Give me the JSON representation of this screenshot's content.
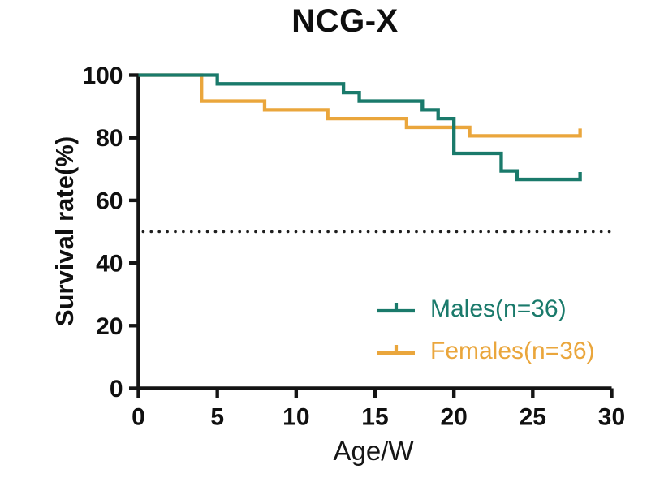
{
  "title": "NCG-X",
  "chart_data": {
    "type": "line",
    "subtype": "kaplan-meier-step-survival",
    "title": "NCG-X",
    "xlabel": "Age/W",
    "ylabel": "Survival rate(%)",
    "xlim": [
      0,
      30
    ],
    "ylim": [
      0,
      100
    ],
    "xticks": [
      0,
      5,
      10,
      15,
      20,
      25,
      30
    ],
    "yticks": [
      0,
      20,
      40,
      60,
      80,
      100
    ],
    "grid": false,
    "legend_position": "lower right",
    "reference_line": {
      "y": 50,
      "style": "dotted",
      "color": "#1f1f1f"
    },
    "axis_color": "#141414",
    "series": [
      {
        "name": "Males(n=36)",
        "slug": "males",
        "color": "#1a7a6b",
        "start_value": 100,
        "steps": [
          [
            5,
            97.2
          ],
          [
            13,
            94.4
          ],
          [
            14,
            91.7
          ],
          [
            18,
            88.9
          ],
          [
            19,
            86.1
          ],
          [
            20,
            75.0
          ],
          [
            23,
            69.4
          ],
          [
            24,
            66.7
          ]
        ],
        "end_week": 28,
        "final_value": 66.7,
        "censor_tick_at_end": true
      },
      {
        "name": "Females(n=36)",
        "slug": "females",
        "color": "#eaa63c",
        "start_value": 100,
        "steps": [
          [
            4,
            91.7
          ],
          [
            8,
            88.9
          ],
          [
            12,
            86.1
          ],
          [
            17,
            83.3
          ],
          [
            21,
            80.6
          ]
        ],
        "end_week": 28,
        "final_value": 80.6,
        "censor_tick_at_end": true
      }
    ]
  }
}
